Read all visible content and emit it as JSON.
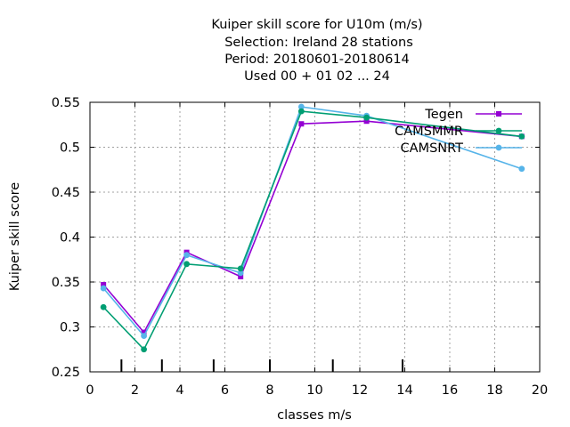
{
  "chart_data": {
    "type": "line",
    "title_lines": [
      "Kuiper skill score  for U10m (m/s)",
      "Selection: Ireland     28 stations",
      "Period: 20180601-20180614",
      "Used  00 + 01 02 ... 24"
    ],
    "xlabel": "classes m/s",
    "ylabel": "Kuiper skill score",
    "xlim": [
      0,
      20
    ],
    "ylim": [
      0.25,
      0.55
    ],
    "xticks": [
      "0",
      "2",
      "4",
      "6",
      "8",
      "10",
      "12",
      "14",
      "16",
      "18",
      "20"
    ],
    "yticks": [
      "0.25",
      "0.3",
      "0.35",
      "0.4",
      "0.45",
      "0.5",
      "0.55"
    ],
    "grid": true,
    "legend_position": "top-right",
    "class_boundaries": [
      1.4,
      3.2,
      5.5,
      8,
      10.8,
      13.9
    ],
    "series": [
      {
        "name": "Tegen",
        "color": "#9400d3",
        "marker": "filled-square",
        "x": [
          0.6,
          2.4,
          4.3,
          6.7,
          9.4,
          12.3,
          19.2
        ],
        "y": [
          0.347,
          0.294,
          0.383,
          0.356,
          0.526,
          0.529,
          0.512
        ]
      },
      {
        "name": "CAMSMMR",
        "color": "#009e73",
        "marker": "filled-circle",
        "x": [
          0.6,
          2.4,
          4.3,
          6.7,
          9.4,
          12.3,
          19.2
        ],
        "y": [
          0.322,
          0.275,
          0.37,
          0.365,
          0.54,
          0.533,
          0.512
        ]
      },
      {
        "name": "CAMSNRT",
        "color": "#56b4e9",
        "marker": "filled-circle",
        "x": [
          0.6,
          2.4,
          4.3,
          6.7,
          9.4,
          12.3,
          19.2
        ],
        "y": [
          0.343,
          0.29,
          0.38,
          0.36,
          0.545,
          0.535,
          0.476
        ]
      }
    ]
  }
}
